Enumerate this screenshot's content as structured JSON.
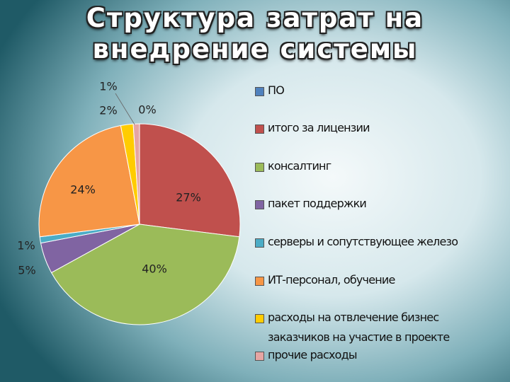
{
  "chart_data": {
    "type": "pie",
    "title": "Структура затрат на внедрение системы",
    "categories": [
      "ПО",
      "итого за лицензии",
      "консалтинг",
      "пакет поддержки",
      "серверы и сопутствующее железо",
      "ИТ-персонал, обучение",
      "расходы на отвлечение бизнес заказчиков на участие в проекте",
      "прочие расходы"
    ],
    "values": [
      0,
      27,
      40,
      5,
      1,
      24,
      2,
      1
    ],
    "value_labels": [
      "0%",
      "27%",
      "40%",
      "5%",
      "1%",
      "24%",
      "2%",
      "1%"
    ],
    "colors": [
      "#4f81bd",
      "#c0504d",
      "#9bbb59",
      "#8064a2",
      "#4bacc6",
      "#f79646",
      "#ffcc00",
      "#e6a5a3"
    ],
    "legend": "right"
  }
}
